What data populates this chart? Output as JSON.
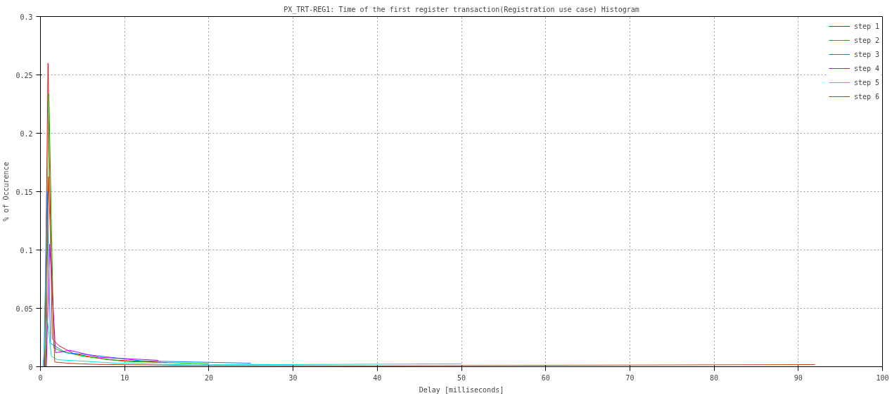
{
  "chart_data": {
    "type": "line",
    "title": "PX_TRT-REG1: Time of the first register transaction(Registration use case) Histogram",
    "xlabel": "Delay [milliseconds]",
    "ylabel": "% of Occurence",
    "series": [
      {
        "name": "step 1",
        "color": "#ff0000",
        "x": [
          0.5,
          0.9,
          1.4,
          2.2,
          4,
          8,
          15
        ],
        "values": [
          0,
          0.26,
          0.024,
          0.018,
          0.011,
          0.006,
          0.0035
        ]
      },
      {
        "name": "step 2",
        "color": "#00c000",
        "x": [
          0.6,
          1.0,
          1.6,
          2.6,
          5,
          10,
          20
        ],
        "values": [
          0,
          0.234,
          0.016,
          0.013,
          0.009,
          0.0045,
          0.0025
        ]
      },
      {
        "name": "step 3",
        "color": "#0080ff",
        "x": [
          0.4,
          0.8,
          1.2,
          3,
          6,
          12,
          25
        ],
        "values": [
          0,
          0.15,
          0.02,
          0.012,
          0.01,
          0.005,
          0.003
        ]
      },
      {
        "name": "step 4",
        "color": "#c000ff",
        "x": [
          0.7,
          1.1,
          1.8,
          3.5,
          7,
          14
        ],
        "values": [
          0,
          0.105,
          0.012,
          0.014,
          0.008,
          0.0055
        ]
      },
      {
        "name": "step 5",
        "color": "#00e0e0",
        "x": [
          0.3,
          0.75,
          1.3,
          2,
          4.5,
          9,
          18,
          50
        ],
        "values": [
          0,
          0.045,
          0.009,
          0.006,
          0.005,
          0.003,
          0.0015,
          0.0025
        ]
      },
      {
        "name": "step 6",
        "color": "#c04000",
        "x": [
          0.65,
          0.95,
          1.7,
          3.2,
          6.5,
          16,
          40,
          92
        ],
        "values": [
          0,
          0.163,
          0.004,
          0.003,
          0.002,
          0.0012,
          0.0008,
          0.0018
        ]
      }
    ],
    "xlim": [
      0,
      100
    ],
    "xticks": [
      0,
      10,
      20,
      30,
      40,
      50,
      60,
      70,
      80,
      90,
      100
    ],
    "ylim": [
      0,
      0.3
    ],
    "yticks": [
      0,
      0.05,
      0.1,
      0.15,
      0.2,
      0.25,
      0.3
    ],
    "grid": true,
    "legend": "top right",
    "line_style": "solid"
  }
}
